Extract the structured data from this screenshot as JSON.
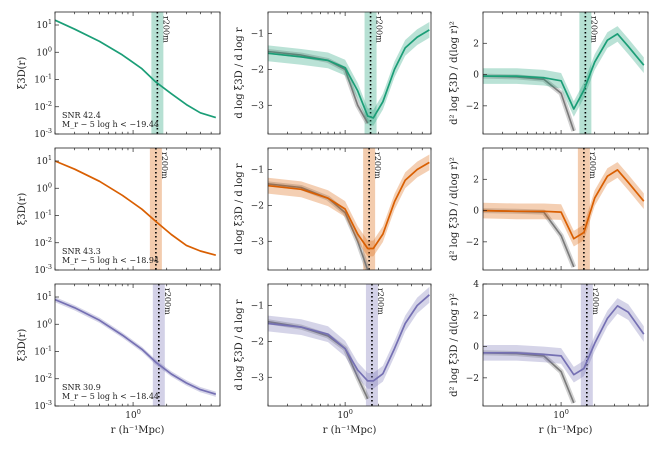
{
  "figure": {
    "row_annotations": [
      {
        "snr": "SNR 42.4",
        "cut": "M_r − 5 log h < −19.44"
      },
      {
        "snr": "SNR 43.3",
        "cut": "M_r − 5 log h < −18.94"
      },
      {
        "snr": "SNR 30.9",
        "cut": "M_r − 5 log h < −18.44"
      }
    ],
    "r200_label": "r200m",
    "colors": [
      "#1b9e77",
      "#d95f02",
      "#7570b3"
    ],
    "gray": "#7a7a7a"
  },
  "chart_data": [
    {
      "type": "line",
      "column": "xi",
      "ylabel": "ξ3D(r)",
      "xlabel": "",
      "xscale": "log",
      "yscale": "log",
      "xlim": [
        0.2,
        6
      ],
      "ylim": [
        0.001,
        30
      ],
      "yticks": [
        "10^1",
        "10^0",
        "10^-1",
        "10^-2",
        "10^-3"
      ],
      "xticks": [],
      "rows": [
        {
          "x": [
            0.2,
            0.3,
            0.5,
            0.8,
            1.2,
            1.6,
            2.2,
            3.0,
            4.0,
            5.5
          ],
          "y": [
            15,
            7,
            2.5,
            0.8,
            0.25,
            0.08,
            0.03,
            0.012,
            0.006,
            0.004
          ],
          "r200": 1.65
        },
        {
          "x": [
            0.2,
            0.3,
            0.5,
            0.8,
            1.2,
            1.6,
            2.2,
            3.0,
            4.0,
            5.5
          ],
          "y": [
            10,
            5,
            1.8,
            0.55,
            0.17,
            0.06,
            0.02,
            0.008,
            0.005,
            0.0035
          ],
          "r200": 1.6
        },
        {
          "x": [
            0.2,
            0.3,
            0.5,
            0.8,
            1.2,
            1.6,
            2.2,
            3.0,
            4.0,
            5.5
          ],
          "y": [
            8,
            4,
            1.4,
            0.4,
            0.12,
            0.04,
            0.015,
            0.007,
            0.004,
            0.0027
          ],
          "r200": 1.7
        }
      ]
    },
    {
      "type": "line",
      "column": "slope",
      "ylabel": "d log ξ3D / d log r",
      "xlabel": "",
      "xscale": "log",
      "xlim": [
        0.2,
        6
      ],
      "ylim": [
        -3.8,
        -0.4
      ],
      "yticks": [
        "−1",
        "−2",
        "−3"
      ],
      "xticks": [],
      "rows": [
        {
          "x": [
            0.2,
            0.4,
            0.7,
            1.0,
            1.3,
            1.6,
            1.8,
            2.2,
            2.8,
            3.5,
            4.5,
            5.8
          ],
          "y": [
            -1.55,
            -1.65,
            -1.75,
            -1.95,
            -2.6,
            -3.3,
            -3.35,
            -2.9,
            -2.0,
            -1.4,
            -1.1,
            -0.9
          ],
          "gray": [
            -1.5,
            -1.6,
            -1.75,
            -2.0,
            -3.0,
            -3.5
          ],
          "r200": 1.7
        },
        {
          "x": [
            0.2,
            0.4,
            0.7,
            1.0,
            1.3,
            1.6,
            1.8,
            2.2,
            2.8,
            3.5,
            4.5,
            5.8
          ],
          "y": [
            -1.45,
            -1.55,
            -1.8,
            -2.1,
            -2.8,
            -3.2,
            -3.2,
            -2.8,
            -1.9,
            -1.3,
            -1.0,
            -0.8
          ],
          "gray": [
            -1.4,
            -1.5,
            -1.8,
            -2.2,
            -3.0,
            -3.8
          ],
          "r200": 1.65
        },
        {
          "x": [
            0.2,
            0.4,
            0.7,
            1.0,
            1.3,
            1.6,
            1.8,
            2.2,
            2.8,
            3.5,
            4.5,
            5.8
          ],
          "y": [
            -1.5,
            -1.6,
            -1.8,
            -2.2,
            -2.8,
            -3.1,
            -3.1,
            -2.9,
            -2.2,
            -1.5,
            -1.0,
            -0.7
          ],
          "gray": [
            -1.45,
            -1.6,
            -1.85,
            -2.2,
            -3.0,
            -3.6
          ],
          "r200": 1.75
        }
      ]
    },
    {
      "type": "line",
      "column": "curvature",
      "ylabel": "d² log ξ3D / d(log r)²",
      "xlabel": "r (h⁻¹Mpc)",
      "xscale": "log",
      "xlim": [
        0.2,
        6
      ],
      "ylim": [
        -3.8,
        4
      ],
      "yticks": [
        "4",
        "2",
        "0",
        "−2"
      ],
      "xticks": [
        "10^0"
      ],
      "rows": [
        {
          "x": [
            0.2,
            0.4,
            0.7,
            1.0,
            1.3,
            1.6,
            2.0,
            2.6,
            3.2,
            4.0,
            5.5
          ],
          "y": [
            -0.1,
            -0.1,
            -0.2,
            -0.4,
            -2.2,
            -1.0,
            0.8,
            2.2,
            2.6,
            1.8,
            0.6
          ],
          "gray": [
            -0.1,
            -0.15,
            -0.3,
            -1.2,
            -3.6
          ],
          "r200": 1.65
        },
        {
          "x": [
            0.2,
            0.4,
            0.7,
            1.0,
            1.3,
            1.6,
            2.0,
            2.6,
            3.2,
            4.0,
            5.5
          ],
          "y": [
            0.0,
            -0.05,
            -0.05,
            -0.1,
            -1.8,
            -1.4,
            0.8,
            2.2,
            2.6,
            1.8,
            0.6
          ],
          "gray": [
            0.0,
            -0.05,
            -0.1,
            -1.6,
            -3.6
          ],
          "r200": 1.6
        },
        {
          "x": [
            0.2,
            0.4,
            0.7,
            1.0,
            1.3,
            1.6,
            2.0,
            2.6,
            3.2,
            4.0,
            5.5
          ],
          "y": [
            -0.4,
            -0.4,
            -0.5,
            -0.6,
            -1.8,
            -1.4,
            0.2,
            1.8,
            2.6,
            2.2,
            0.8
          ],
          "gray": [
            -0.4,
            -0.45,
            -0.6,
            -1.6,
            -3.6
          ],
          "r200": 1.7
        }
      ]
    }
  ]
}
